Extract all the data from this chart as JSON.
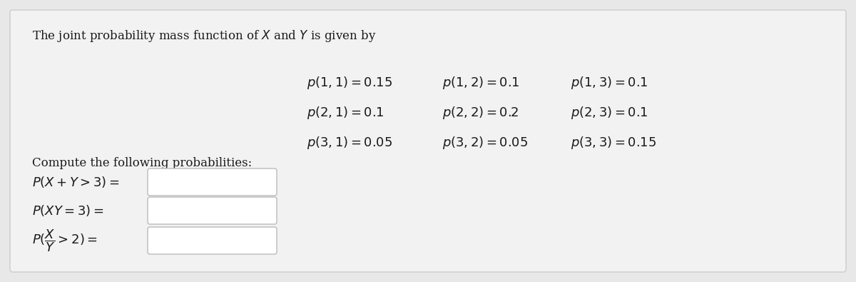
{
  "bg_outer": "#e8e8e8",
  "bg_inner": "#f2f2f2",
  "text_color": "#1a1a1a",
  "title_text": "The joint probability mass function of $X$ and $Y$ is given by",
  "pmf_row1": [
    "$p(1,1) = 0.15$",
    "$p(1,2) = 0.1$",
    "$p(1,3) = 0.1$"
  ],
  "pmf_row2": [
    "$p(2,1) = 0.1$",
    "$p(2,2) = 0.2$",
    "$p(2,3) = 0.1$"
  ],
  "pmf_row3": [
    "$p(3,1) = 0.05$",
    "$p(3,2) = 0.05$",
    "$p(3,3) = 0.15$"
  ],
  "compute_label": "Compute the following probabilities:",
  "prob_labels": [
    "$P(X+Y > 3) =$",
    "$P(XY = 3) =$",
    "$P(\\dfrac{X}{Y} > 2) =$"
  ],
  "box_color": "#ffffff",
  "box_edge": "#bbbbbb",
  "title_fontsize": 12,
  "pmf_fontsize": 13,
  "compute_fontsize": 12,
  "prob_fontsize": 13,
  "card_facecolor": "#f2f2f2",
  "card_edgecolor": "#cccccc"
}
